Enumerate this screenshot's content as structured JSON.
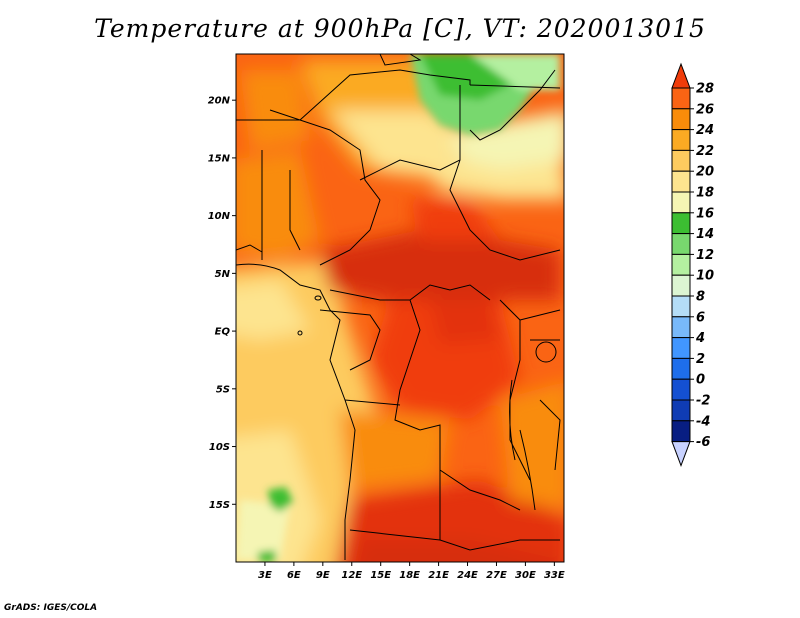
{
  "title": "Temperature at 900hPa [C], VT: 2020013015",
  "credit": "GrADS: IGES/COLA",
  "map": {
    "lon_range": [
      0,
      34
    ],
    "lat_range": [
      -20,
      24
    ],
    "lat_ticks": [
      {
        "lat": 20,
        "label": "20N"
      },
      {
        "lat": 15,
        "label": "15N"
      },
      {
        "lat": 10,
        "label": "10N"
      },
      {
        "lat": 5,
        "label": "5N"
      },
      {
        "lat": 0,
        "label": "EQ"
      },
      {
        "lat": -5,
        "label": "5S"
      },
      {
        "lat": -10,
        "label": "10S"
      },
      {
        "lat": -15,
        "label": "15S"
      }
    ],
    "lon_ticks": [
      {
        "lon": 3,
        "label": "3E"
      },
      {
        "lon": 6,
        "label": "6E"
      },
      {
        "lon": 9,
        "label": "9E"
      },
      {
        "lon": 12,
        "label": "12E"
      },
      {
        "lon": 15,
        "label": "15E"
      },
      {
        "lon": 18,
        "label": "18E"
      },
      {
        "lon": 21,
        "label": "21E"
      },
      {
        "lon": 24,
        "label": "24E"
      },
      {
        "lon": 27,
        "label": "27E"
      },
      {
        "lon": 30,
        "label": "30E"
      },
      {
        "lon": 33,
        "label": "33E"
      }
    ]
  },
  "colorbar": {
    "labels": [
      "28",
      "26",
      "24",
      "22",
      "20",
      "18",
      "16",
      "14",
      "12",
      "10",
      "8",
      "6",
      "4",
      "2",
      "0",
      "-2",
      "-4",
      "-6"
    ],
    "colors": [
      "#f03c0a",
      "#fa6414",
      "#f98c0a",
      "#fbaa23",
      "#fdcb5f",
      "#fde48f",
      "#f5f5b4",
      "#3cbe32",
      "#78d86e",
      "#b4f0a0",
      "#dcf5d2",
      "#b4ddf7",
      "#78b9fa",
      "#4196ff",
      "#1e6eeb",
      "#1450d2",
      "#0f3cb4",
      "#081e82",
      "#000a5a",
      "#c8d2ff"
    ]
  }
}
